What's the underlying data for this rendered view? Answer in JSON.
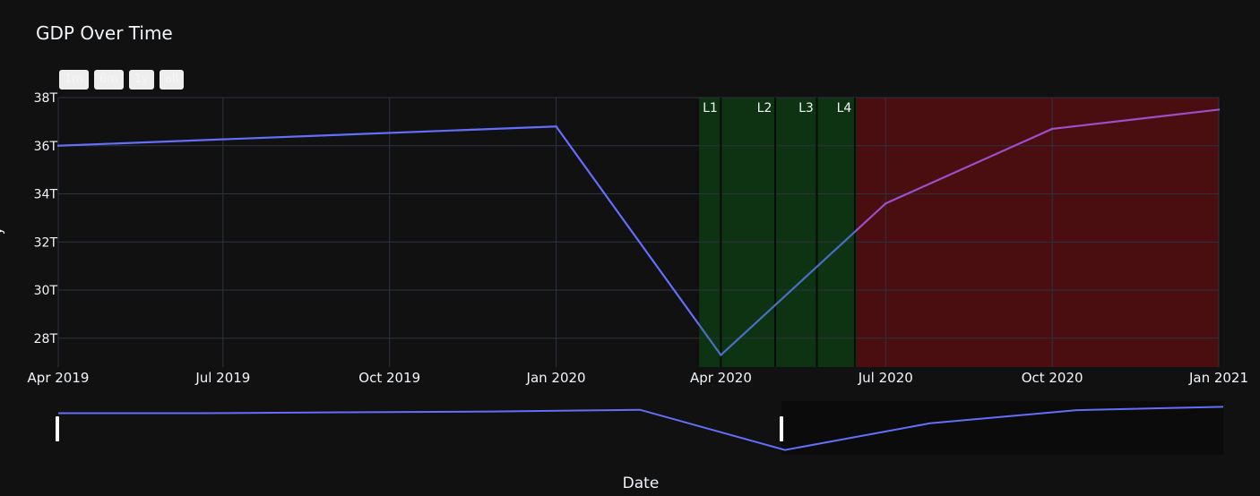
{
  "chart_data": {
    "type": "line",
    "title": "GDP Over Time",
    "xlabel": "Date",
    "ylabel": "y",
    "x": [
      "2019-04-01",
      "2020-01-01",
      "2020-04-01",
      "2020-07-01",
      "2020-10-01",
      "2021-01-01"
    ],
    "y": [
      36.0,
      36.8,
      27.3,
      33.6,
      36.7,
      37.5
    ],
    "y_unit": "T",
    "ylim": [
      26.8,
      38.0
    ],
    "xlim": [
      "2019-04-01",
      "2021-01-01"
    ],
    "yticks": [
      28,
      30,
      32,
      34,
      36,
      38
    ],
    "ytick_labels": [
      "28T",
      "30T",
      "32T",
      "34T",
      "36T",
      "38T"
    ],
    "xticks": [
      "2019-04-01",
      "2019-07-01",
      "2019-10-01",
      "2020-01-01",
      "2020-04-01",
      "2020-07-01",
      "2020-10-01",
      "2021-01-01"
    ],
    "xtick_labels": [
      "Apr 2019",
      "Jul 2019",
      "Oct 2019",
      "Jan 2020",
      "Apr 2020",
      "Jul 2020",
      "Oct 2020",
      "Jan 2021"
    ],
    "grid": true,
    "line_colors": {
      "before": "#636efa",
      "green_zone": "#4a6fc2",
      "red_zone": "#9b50c8"
    },
    "shaded_regions": [
      {
        "label": "",
        "x0": "2020-03-20",
        "x1": "2020-06-15",
        "color": "#0d3312"
      },
      {
        "label": "",
        "x0": "2020-06-15",
        "x1": "2021-01-01",
        "color": "#4a0d10"
      }
    ],
    "vertical_markers": [
      {
        "label": "L1",
        "x": "2020-04-01"
      },
      {
        "label": "L2",
        "x": "2020-05-01"
      },
      {
        "label": "L3",
        "x": "2020-05-24"
      },
      {
        "label": "L4",
        "x": "2020-06-14"
      }
    ],
    "range_selector": [
      "1m",
      "6m",
      "1y",
      "all"
    ],
    "range_slider": {
      "x": [
        "2019-01-01",
        "2019-04-01",
        "2019-07-01",
        "2019-10-01",
        "2020-01-01",
        "2020-04-01",
        "2020-07-01",
        "2020-10-01",
        "2021-01-01"
      ],
      "y": [
        36.0,
        36.0,
        36.2,
        36.4,
        36.8,
        27.3,
        33.6,
        36.7,
        37.5
      ]
    }
  }
}
